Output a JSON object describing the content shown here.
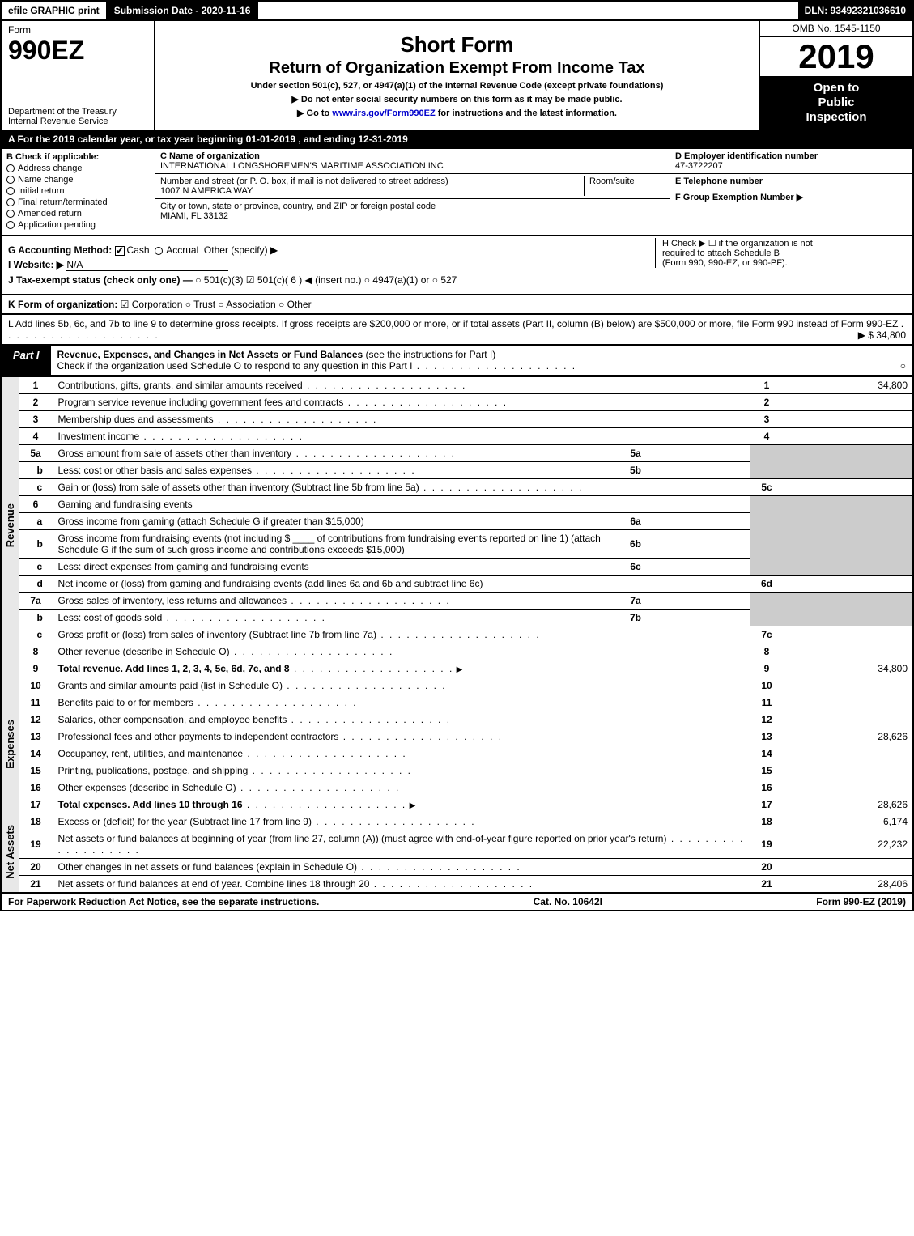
{
  "topbar": {
    "efile": "efile GRAPHIC print",
    "submission": "Submission Date - 2020-11-16",
    "dln": "DLN: 93492321036610"
  },
  "header": {
    "form_label": "Form",
    "form_number": "990EZ",
    "dept1": "Department of the Treasury",
    "dept2": "Internal Revenue Service",
    "title1": "Short Form",
    "title2": "Return of Organization Exempt From Income Tax",
    "sub1": "Under section 501(c), 527, or 4947(a)(1) of the Internal Revenue Code (except private foundations)",
    "sub2": "▶ Do not enter social security numbers on this form as it may be made public.",
    "sub3_pre": "▶ Go to ",
    "sub3_link": "www.irs.gov/Form990EZ",
    "sub3_post": " for instructions and the latest information.",
    "omb": "OMB No. 1545-1150",
    "year": "2019",
    "open1": "Open to",
    "open2": "Public",
    "open3": "Inspection"
  },
  "tax_year_line": "A  For the 2019 calendar year, or tax year beginning 01-01-2019 , and ending 12-31-2019",
  "sectionB": {
    "label": "B  Check if applicable:",
    "opts": [
      "Address change",
      "Name change",
      "Initial return",
      "Final return/terminated",
      "Amended return",
      "Application pending"
    ]
  },
  "sectionC": {
    "name_lbl": "C Name of organization",
    "name_val": "INTERNATIONAL LONGSHOREMEN'S MARITIME ASSOCIATION INC",
    "addr_lbl": "Number and street (or P. O. box, if mail is not delivered to street address)",
    "addr_val": "1007 N AMERICA WAY",
    "room_lbl": "Room/suite",
    "city_lbl": "City or town, state or province, country, and ZIP or foreign postal code",
    "city_val": "MIAMI, FL  33132"
  },
  "sectionD": {
    "lbl": "D Employer identification number",
    "val": "47-3722207"
  },
  "sectionE": {
    "lbl": "E Telephone number",
    "val": ""
  },
  "sectionF": {
    "lbl": "F Group Exemption Number  ▶",
    "val": ""
  },
  "meta": {
    "g_label": "G Accounting Method:",
    "g_cash": "Cash",
    "g_accrual": "Accrual",
    "g_other": "Other (specify) ▶",
    "h_text1": "H  Check ▶ ☐ if the organization is not",
    "h_text2": "required to attach Schedule B",
    "h_text3": "(Form 990, 990-EZ, or 990-PF).",
    "i_label": "I Website: ▶",
    "i_val": "N/A",
    "j_label": "J Tax-exempt status (check only one) —",
    "j_opts": "○ 501(c)(3)  ☑ 501(c)( 6 ) ◀ (insert no.)  ○ 4947(a)(1) or  ○ 527"
  },
  "lineK": {
    "label": "K Form of organization:",
    "opts": "☑ Corporation   ○ Trust   ○ Association   ○ Other"
  },
  "lineL": {
    "text": "L Add lines 5b, 6c, and 7b to line 9 to determine gross receipts. If gross receipts are $200,000 or more, or if total assets (Part II, column (B) below) are $500,000 or more, file Form 990 instead of Form 990-EZ",
    "amount": "▶ $ 34,800"
  },
  "part1": {
    "label": "Part I",
    "title": "Revenue, Expenses, and Changes in Net Assets or Fund Balances",
    "title_note": " (see the instructions for Part I)",
    "check_line": "Check if the organization used Schedule O to respond to any question in this Part I",
    "check_val": "○"
  },
  "sections": {
    "revenue": "Revenue",
    "expenses": "Expenses",
    "netassets": "Net Assets"
  },
  "rows": {
    "r1": {
      "n": "1",
      "d": "Contributions, gifts, grants, and similar amounts received",
      "rn": "1",
      "amt": "34,800"
    },
    "r2": {
      "n": "2",
      "d": "Program service revenue including government fees and contracts",
      "rn": "2",
      "amt": ""
    },
    "r3": {
      "n": "3",
      "d": "Membership dues and assessments",
      "rn": "3",
      "amt": ""
    },
    "r4": {
      "n": "4",
      "d": "Investment income",
      "rn": "4",
      "amt": ""
    },
    "r5a": {
      "n": "5a",
      "d": "Gross amount from sale of assets other than inventory",
      "in": "5a"
    },
    "r5b": {
      "n": "b",
      "d": "Less: cost or other basis and sales expenses",
      "in": "5b"
    },
    "r5c": {
      "n": "c",
      "d": "Gain or (loss) from sale of assets other than inventory (Subtract line 5b from line 5a)",
      "rn": "5c",
      "amt": ""
    },
    "r6": {
      "n": "6",
      "d": "Gaming and fundraising events"
    },
    "r6a": {
      "n": "a",
      "d": "Gross income from gaming (attach Schedule G if greater than $15,000)",
      "in": "6a"
    },
    "r6b": {
      "n": "b",
      "d": "Gross income from fundraising events (not including $ ____ of contributions from fundraising events reported on line 1) (attach Schedule G if the sum of such gross income and contributions exceeds $15,000)",
      "in": "6b"
    },
    "r6c": {
      "n": "c",
      "d": "Less: direct expenses from gaming and fundraising events",
      "in": "6c"
    },
    "r6d": {
      "n": "d",
      "d": "Net income or (loss) from gaming and fundraising events (add lines 6a and 6b and subtract line 6c)",
      "rn": "6d",
      "amt": ""
    },
    "r7a": {
      "n": "7a",
      "d": "Gross sales of inventory, less returns and allowances",
      "in": "7a"
    },
    "r7b": {
      "n": "b",
      "d": "Less: cost of goods sold",
      "in": "7b"
    },
    "r7c": {
      "n": "c",
      "d": "Gross profit or (loss) from sales of inventory (Subtract line 7b from line 7a)",
      "rn": "7c",
      "amt": ""
    },
    "r8": {
      "n": "8",
      "d": "Other revenue (describe in Schedule O)",
      "rn": "8",
      "amt": ""
    },
    "r9": {
      "n": "9",
      "d": "Total revenue. Add lines 1, 2, 3, 4, 5c, 6d, 7c, and 8",
      "rn": "9",
      "amt": "34,800",
      "bold": true,
      "arrow": true
    },
    "r10": {
      "n": "10",
      "d": "Grants and similar amounts paid (list in Schedule O)",
      "rn": "10",
      "amt": ""
    },
    "r11": {
      "n": "11",
      "d": "Benefits paid to or for members",
      "rn": "11",
      "amt": ""
    },
    "r12": {
      "n": "12",
      "d": "Salaries, other compensation, and employee benefits",
      "rn": "12",
      "amt": ""
    },
    "r13": {
      "n": "13",
      "d": "Professional fees and other payments to independent contractors",
      "rn": "13",
      "amt": "28,626"
    },
    "r14": {
      "n": "14",
      "d": "Occupancy, rent, utilities, and maintenance",
      "rn": "14",
      "amt": ""
    },
    "r15": {
      "n": "15",
      "d": "Printing, publications, postage, and shipping",
      "rn": "15",
      "amt": ""
    },
    "r16": {
      "n": "16",
      "d": "Other expenses (describe in Schedule O)",
      "rn": "16",
      "amt": ""
    },
    "r17": {
      "n": "17",
      "d": "Total expenses. Add lines 10 through 16",
      "rn": "17",
      "amt": "28,626",
      "bold": true,
      "arrow": true
    },
    "r18": {
      "n": "18",
      "d": "Excess or (deficit) for the year (Subtract line 17 from line 9)",
      "rn": "18",
      "amt": "6,174"
    },
    "r19": {
      "n": "19",
      "d": "Net assets or fund balances at beginning of year (from line 27, column (A)) (must agree with end-of-year figure reported on prior year's return)",
      "rn": "19",
      "amt": "22,232"
    },
    "r20": {
      "n": "20",
      "d": "Other changes in net assets or fund balances (explain in Schedule O)",
      "rn": "20",
      "amt": ""
    },
    "r21": {
      "n": "21",
      "d": "Net assets or fund balances at end of year. Combine lines 18 through 20",
      "rn": "21",
      "amt": "28,406"
    }
  },
  "footer": {
    "left": "For Paperwork Reduction Act Notice, see the separate instructions.",
    "mid": "Cat. No. 10642I",
    "right": "Form 990-EZ (2019)"
  },
  "colors": {
    "black": "#000000",
    "white": "#ffffff",
    "shade": "#cccccc",
    "section_bg": "#e8e8e8",
    "link": "#0000cc"
  }
}
